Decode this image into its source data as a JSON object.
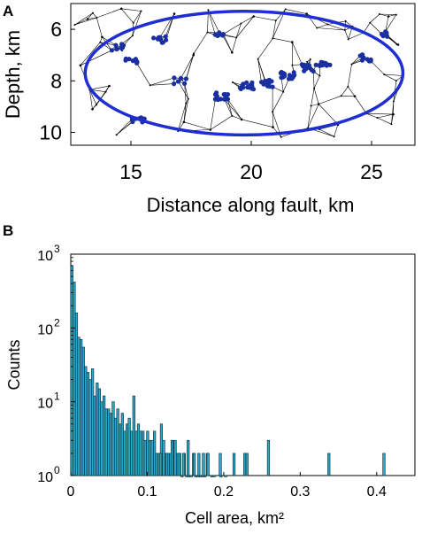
{
  "panels": {
    "a": {
      "letter": "A"
    },
    "b": {
      "letter": "B"
    }
  },
  "colors": {
    "ellipse": "#1f2ed1",
    "cluster": "#1a2fa0",
    "bar_fill": "#2aa6c6",
    "bar_edge": "#0a2730",
    "mesh": "#000000"
  },
  "chart_data": [
    {
      "type": "scatter",
      "description_kind": "voronoi-tessellation",
      "xlabel": "Distance along fault, km",
      "ylabel": "Depth, km",
      "xlim": [
        12.5,
        26.8
      ],
      "ylim": [
        10.5,
        5.0
      ],
      "y_reversed": true,
      "xticks": [
        15,
        20,
        25
      ],
      "xtick_labels": [
        "15",
        "20",
        "25"
      ],
      "yticks": [
        6,
        8,
        10
      ],
      "ytick_labels": [
        "6",
        "8",
        "10"
      ],
      "ellipse": {
        "cx": 19.7,
        "cy": 7.7,
        "rx": 6.6,
        "ry": 2.4
      },
      "clusters": [
        {
          "x": 14.5,
          "y": 6.7,
          "n": 10
        },
        {
          "x": 15.0,
          "y": 7.2,
          "n": 8
        },
        {
          "x": 16.2,
          "y": 6.4,
          "n": 12
        },
        {
          "x": 18.6,
          "y": 6.2,
          "n": 6
        },
        {
          "x": 15.3,
          "y": 9.5,
          "n": 7
        },
        {
          "x": 17.0,
          "y": 8.0,
          "n": 6
        },
        {
          "x": 18.8,
          "y": 8.6,
          "n": 14
        },
        {
          "x": 19.8,
          "y": 8.2,
          "n": 16
        },
        {
          "x": 20.6,
          "y": 8.1,
          "n": 16
        },
        {
          "x": 21.5,
          "y": 7.8,
          "n": 18
        },
        {
          "x": 22.4,
          "y": 7.5,
          "n": 14
        },
        {
          "x": 23.0,
          "y": 7.3,
          "n": 10
        },
        {
          "x": 24.7,
          "y": 7.1,
          "n": 8
        },
        {
          "x": 25.4,
          "y": 6.2,
          "n": 6
        }
      ],
      "sparse_events": [
        [
          13.2,
          5.6
        ],
        [
          13.8,
          6.3
        ],
        [
          14.1,
          8.2
        ],
        [
          13.4,
          9.1
        ],
        [
          16.8,
          5.4
        ],
        [
          17.6,
          7.0
        ],
        [
          18.3,
          9.9
        ],
        [
          19.2,
          6.9
        ],
        [
          20.1,
          5.5
        ],
        [
          21.7,
          6.5
        ],
        [
          22.8,
          8.9
        ],
        [
          23.6,
          9.7
        ],
        [
          24.3,
          8.6
        ],
        [
          25.9,
          9.3
        ],
        [
          26.3,
          7.8
        ],
        [
          25.7,
          5.5
        ],
        [
          24.2,
          5.9
        ],
        [
          22.3,
          5.4
        ],
        [
          17.2,
          9.6
        ],
        [
          20.9,
          9.8
        ],
        [
          14.6,
          5.2
        ],
        [
          12.9,
          7.4
        ],
        [
          26.1,
          6.6
        ],
        [
          19.6,
          9.5
        ]
      ]
    },
    {
      "type": "bar",
      "xlabel": "Cell area, km²",
      "ylabel": "Counts",
      "x_scale": "linear",
      "y_scale": "log",
      "xlim": [
        0,
        0.45
      ],
      "ylim": [
        1,
        1000
      ],
      "xticks": [
        0,
        0.1,
        0.2,
        0.3,
        0.4
      ],
      "xtick_labels": [
        "0",
        "0.1",
        "0.2",
        "0.3",
        "0.4"
      ],
      "yticks": [
        1,
        10,
        100,
        1000
      ],
      "ytick_labels": [
        {
          "base": "10",
          "exp": "0"
        },
        {
          "base": "10",
          "exp": "1"
        },
        {
          "base": "10",
          "exp": "2"
        },
        {
          "base": "10",
          "exp": "3"
        }
      ],
      "bin_width": 0.003,
      "bin_start": 0.0,
      "values": [
        700,
        420,
        160,
        75,
        70,
        55,
        30,
        25,
        20,
        28,
        12,
        18,
        15,
        10,
        12,
        8,
        8,
        7,
        10,
        6,
        8,
        5,
        7,
        4,
        5,
        6,
        4,
        12,
        4,
        5,
        4,
        4,
        3,
        4,
        3,
        3,
        4,
        2,
        2,
        5,
        3,
        2,
        2,
        2,
        3,
        3,
        2,
        2,
        1,
        2,
        1,
        1,
        1,
        2,
        1,
        1,
        1,
        1,
        1,
        2,
        0,
        1,
        1,
        0,
        0,
        1,
        0,
        1,
        0,
        0,
        0,
        0,
        0,
        0,
        0,
        0,
        0,
        0,
        0,
        0,
        0,
        0,
        0,
        0,
        0,
        0,
        0,
        0,
        0,
        0,
        0,
        0,
        0,
        0,
        0,
        0,
        0,
        0,
        0,
        0,
        0,
        0,
        0,
        0,
        0,
        0,
        0,
        0,
        0,
        0,
        0,
        0,
        0,
        0,
        0,
        0,
        0,
        0,
        0,
        0,
        0,
        0,
        0,
        0,
        0,
        0,
        0,
        0,
        0,
        0,
        0,
        0,
        0,
        0,
        0,
        0,
        0,
        0,
        0,
        0,
        0,
        0,
        0,
        0,
        0
      ],
      "isolated_bars": [
        {
          "x": 0.116,
          "v": 2
        },
        {
          "x": 0.124,
          "v": 2
        },
        {
          "x": 0.131,
          "v": 3
        },
        {
          "x": 0.14,
          "v": 2
        },
        {
          "x": 0.146,
          "v": 2
        },
        {
          "x": 0.152,
          "v": 3
        },
        {
          "x": 0.16,
          "v": 2
        },
        {
          "x": 0.166,
          "v": 2
        },
        {
          "x": 0.172,
          "v": 2
        },
        {
          "x": 0.178,
          "v": 2
        },
        {
          "x": 0.194,
          "v": 2
        },
        {
          "x": 0.212,
          "v": 2
        },
        {
          "x": 0.226,
          "v": 2
        },
        {
          "x": 0.229,
          "v": 2
        },
        {
          "x": 0.257,
          "v": 3
        },
        {
          "x": 0.336,
          "v": 2
        },
        {
          "x": 0.408,
          "v": 2
        }
      ]
    }
  ]
}
